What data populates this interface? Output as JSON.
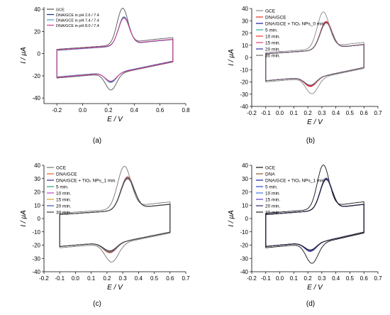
{
  "chart_data": [
    {
      "type": "line",
      "caption": "(a)",
      "xlabel": "E / V",
      "ylabel": "I / µA",
      "xlim": [
        -0.3,
        0.8
      ],
      "ylim": [
        -45,
        42
      ],
      "xticks": [
        -0.2,
        0.0,
        0.2,
        0.4,
        0.6,
        0.8
      ],
      "yticks": [
        -40,
        -20,
        0,
        20,
        40
      ],
      "legend_position": "top-left",
      "x_range": [
        -0.2,
        0.7
      ],
      "series": [
        {
          "name": "GCE",
          "color": "#555555",
          "Epa": 0.31,
          "Ipa": 39,
          "Epc": 0.22,
          "Ipc": -37,
          "base_upper": 6,
          "base_lower": -22
        },
        {
          "name": "DNA/GCE in pH 2.6 / 7.4",
          "color": "#1a2a8c",
          "Epa": 0.32,
          "Ipa": 31,
          "Epc": 0.22,
          "Ipc": -30,
          "base_upper": 5,
          "base_lower": -21
        },
        {
          "name": "DNA/GCE in pH 7.4 / 7.4",
          "color": "#3aa0c8",
          "Epa": 0.32,
          "Ipa": 30.5,
          "Epc": 0.22,
          "Ipc": -29.5,
          "base_upper": 5.2,
          "base_lower": -21.2
        },
        {
          "name": "DNA/GCE in pH 8.0 / 7.4",
          "color": "#d63a8c",
          "Epa": 0.32,
          "Ipa": 30,
          "Epc": 0.22,
          "Ipc": -29,
          "base_upper": 5.4,
          "base_lower": -21.4
        }
      ]
    },
    {
      "type": "line",
      "caption": "(b)",
      "xlabel": "E / V",
      "ylabel": "I / µA",
      "xlim": [
        -0.2,
        0.7
      ],
      "ylim": [
        -40,
        40
      ],
      "xticks": [
        -0.2,
        -0.1,
        0.0,
        0.1,
        0.2,
        0.3,
        0.4,
        0.5,
        0.6,
        0.7
      ],
      "yticks": [
        -40,
        -30,
        -20,
        -10,
        0,
        10,
        20,
        30,
        40
      ],
      "legend_position": "top-left",
      "x_range": [
        -0.1,
        0.6
      ],
      "series": [
        {
          "name": "GCE",
          "color": "#888888",
          "Epa": 0.31,
          "Ipa": 36,
          "Epc": 0.23,
          "Ipc": -33,
          "base_upper": 6,
          "base_lower": -20
        },
        {
          "name": "DNA/GCE",
          "color": "#e03020",
          "Epa": 0.33,
          "Ipa": 28,
          "Epc": 0.22,
          "Ipc": -27,
          "base_upper": 5,
          "base_lower": -19
        },
        {
          "name": "DNA/GCE + TiO₂ NPs_0 min.",
          "color": "#1a1a8c",
          "Epa": 0.33,
          "Ipa": 27,
          "Epc": 0.22,
          "Ipc": -26,
          "base_upper": 5,
          "base_lower": -19
        },
        {
          "name": "5 min.",
          "color": "#2aa0a0",
          "Epa": 0.33,
          "Ipa": 27,
          "Epc": 0.22,
          "Ipc": -26,
          "base_upper": 5,
          "base_lower": -19
        },
        {
          "name": "10 min.",
          "color": "#ff2a2a",
          "Epa": 0.33,
          "Ipa": 27.5,
          "Epc": 0.22,
          "Ipc": -26.5,
          "base_upper": 5,
          "base_lower": -19
        },
        {
          "name": "15 min.",
          "color": "#e04080",
          "Epa": 0.33,
          "Ipa": 27.2,
          "Epc": 0.22,
          "Ipc": -26.2,
          "base_upper": 5,
          "base_lower": -19
        },
        {
          "name": "20 min.",
          "color": "#3a2a9c",
          "Epa": 0.33,
          "Ipa": 27,
          "Epc": 0.22,
          "Ipc": -26,
          "base_upper": 5,
          "base_lower": -19
        },
        {
          "name": "30 min.",
          "color": "#6a6a6a",
          "Epa": 0.33,
          "Ipa": 26.8,
          "Epc": 0.22,
          "Ipc": -25.8,
          "base_upper": 5,
          "base_lower": -19
        }
      ]
    },
    {
      "type": "line",
      "caption": "(c)",
      "xlabel": "E / V",
      "ylabel": "I / µA",
      "xlim": [
        -0.2,
        0.7
      ],
      "ylim": [
        -40,
        40
      ],
      "xticks": [
        -0.2,
        -0.1,
        0.0,
        0.1,
        0.2,
        0.3,
        0.4,
        0.5,
        0.6,
        0.7
      ],
      "yticks": [
        -40,
        -30,
        -20,
        -10,
        0,
        10,
        20,
        30,
        40
      ],
      "legend_position": "top-left",
      "x_range": [
        -0.1,
        0.6
      ],
      "series": [
        {
          "name": "GCE",
          "color": "#777777",
          "Epa": 0.31,
          "Ipa": 38,
          "Epc": 0.23,
          "Ipc": -36,
          "base_upper": 6,
          "base_lower": -22
        },
        {
          "name": "DNA/GCE",
          "color": "#e06020",
          "Epa": 0.33,
          "Ipa": 30,
          "Epc": 0.22,
          "Ipc": -29,
          "base_upper": 5,
          "base_lower": -21
        },
        {
          "name": "DNA/GCE + TiO₂ NPs_1 min.",
          "color": "#2a2a9c",
          "Epa": 0.33,
          "Ipa": 29.5,
          "Epc": 0.22,
          "Ipc": -28.5,
          "base_upper": 5,
          "base_lower": -21
        },
        {
          "name": "5 min.",
          "color": "#2aa080",
          "Epa": 0.33,
          "Ipa": 29.3,
          "Epc": 0.22,
          "Ipc": -28.3,
          "base_upper": 5,
          "base_lower": -21
        },
        {
          "name": "10 min.",
          "color": "#c040c0",
          "Epa": 0.33,
          "Ipa": 29.1,
          "Epc": 0.22,
          "Ipc": -28.1,
          "base_upper": 5,
          "base_lower": -21
        },
        {
          "name": "15 min.",
          "color": "#d0a020",
          "Epa": 0.33,
          "Ipa": 28.9,
          "Epc": 0.22,
          "Ipc": -27.9,
          "base_upper": 5,
          "base_lower": -21
        },
        {
          "name": "20 min.",
          "color": "#3a5ab0",
          "Epa": 0.33,
          "Ipa": 28.7,
          "Epc": 0.22,
          "Ipc": -27.7,
          "base_upper": 5,
          "base_lower": -21
        },
        {
          "name": "30 min.",
          "color": "#404040",
          "Epa": 0.33,
          "Ipa": 28.5,
          "Epc": 0.22,
          "Ipc": -27.5,
          "base_upper": 5,
          "base_lower": -21
        }
      ]
    },
    {
      "type": "line",
      "caption": "(d)",
      "xlabel": "E / V",
      "ylabel": "I / µA",
      "xlim": [
        -0.2,
        0.7
      ],
      "ylim": [
        -40,
        40
      ],
      "xticks": [
        -0.2,
        -0.1,
        0.0,
        0.1,
        0.2,
        0.3,
        0.4,
        0.5,
        0.6,
        0.7
      ],
      "yticks": [
        -40,
        -30,
        -20,
        -10,
        0,
        10,
        20,
        30,
        40
      ],
      "legend_position": "top-left",
      "x_range": [
        -0.1,
        0.6
      ],
      "series": [
        {
          "name": "GCE",
          "color": "#111111",
          "Epa": 0.31,
          "Ipa": 39,
          "Epc": 0.23,
          "Ipc": -37,
          "base_upper": 6,
          "base_lower": -22
        },
        {
          "name": "DNA",
          "color": "#8a5a20",
          "Epa": 0.33,
          "Ipa": 29,
          "Epc": 0.22,
          "Ipc": -28,
          "base_upper": 5,
          "base_lower": -21
        },
        {
          "name": "DNA/GCE + TiO₂ NPs_1 min.",
          "color": "#1a1a9c",
          "Epa": 0.33,
          "Ipa": 28.8,
          "Epc": 0.22,
          "Ipc": -27.8,
          "base_upper": 5,
          "base_lower": -21
        },
        {
          "name": "5 min.",
          "color": "#2a4ad0",
          "Epa": 0.33,
          "Ipa": 28.6,
          "Epc": 0.22,
          "Ipc": -27.6,
          "base_upper": 5,
          "base_lower": -21
        },
        {
          "name": "10 min.",
          "color": "#3a7ae0",
          "Epa": 0.33,
          "Ipa": 28.4,
          "Epc": 0.22,
          "Ipc": -27.4,
          "base_upper": 5,
          "base_lower": -21
        },
        {
          "name": "15 min.",
          "color": "#5a3ac0",
          "Epa": 0.33,
          "Ipa": 28.2,
          "Epc": 0.22,
          "Ipc": -27.2,
          "base_upper": 5,
          "base_lower": -21
        },
        {
          "name": "20 min.",
          "color": "#2a2a6a",
          "Epa": 0.33,
          "Ipa": 28,
          "Epc": 0.22,
          "Ipc": -27,
          "base_upper": 5,
          "base_lower": -21
        },
        {
          "name": "30 min.",
          "color": "#222222",
          "Epa": 0.33,
          "Ipa": 27.8,
          "Epc": 0.22,
          "Ipc": -26.8,
          "base_upper": 5,
          "base_lower": -21
        }
      ]
    }
  ]
}
